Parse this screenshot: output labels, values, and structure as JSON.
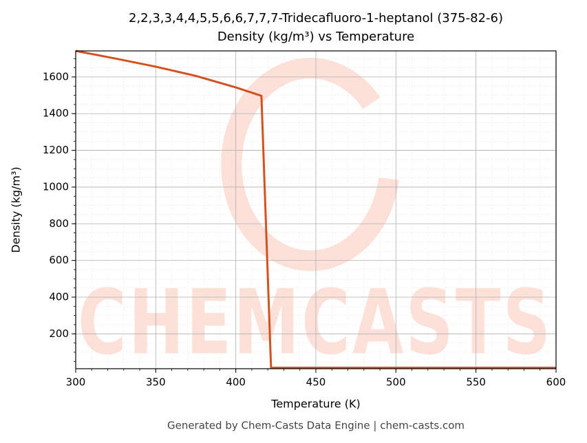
{
  "chart_data": {
    "type": "line",
    "title": "2,2,3,3,4,4,5,5,6,6,7,7,7-Tridecafluoro-1-heptanol (375-82-6)",
    "subtitle": "Density (kg/m³) vs Temperature",
    "x_label": "Temperature (K)",
    "y_label": "Density (kg/m³)",
    "footer": "Generated by Chem-Casts Data Engine | chem-casts.com",
    "watermark": "CHEMCASTS",
    "x": [
      300,
      325,
      350,
      375,
      400,
      416,
      422,
      450,
      500,
      550,
      600
    ],
    "series": [
      {
        "name": "Density",
        "color": "#d4501f",
        "values": [
          1742,
          1700,
          1656,
          1606,
          1543,
          1497,
          15,
          15,
          15,
          15,
          15
        ]
      }
    ],
    "xlim": [
      300,
      600
    ],
    "xticks": [
      300,
      350,
      400,
      450,
      500,
      550,
      600
    ],
    "ylim": [
      10,
      1742
    ],
    "yticks": [
      200,
      400,
      600,
      800,
      1000,
      1200,
      1400,
      1600
    ],
    "grid": true
  }
}
